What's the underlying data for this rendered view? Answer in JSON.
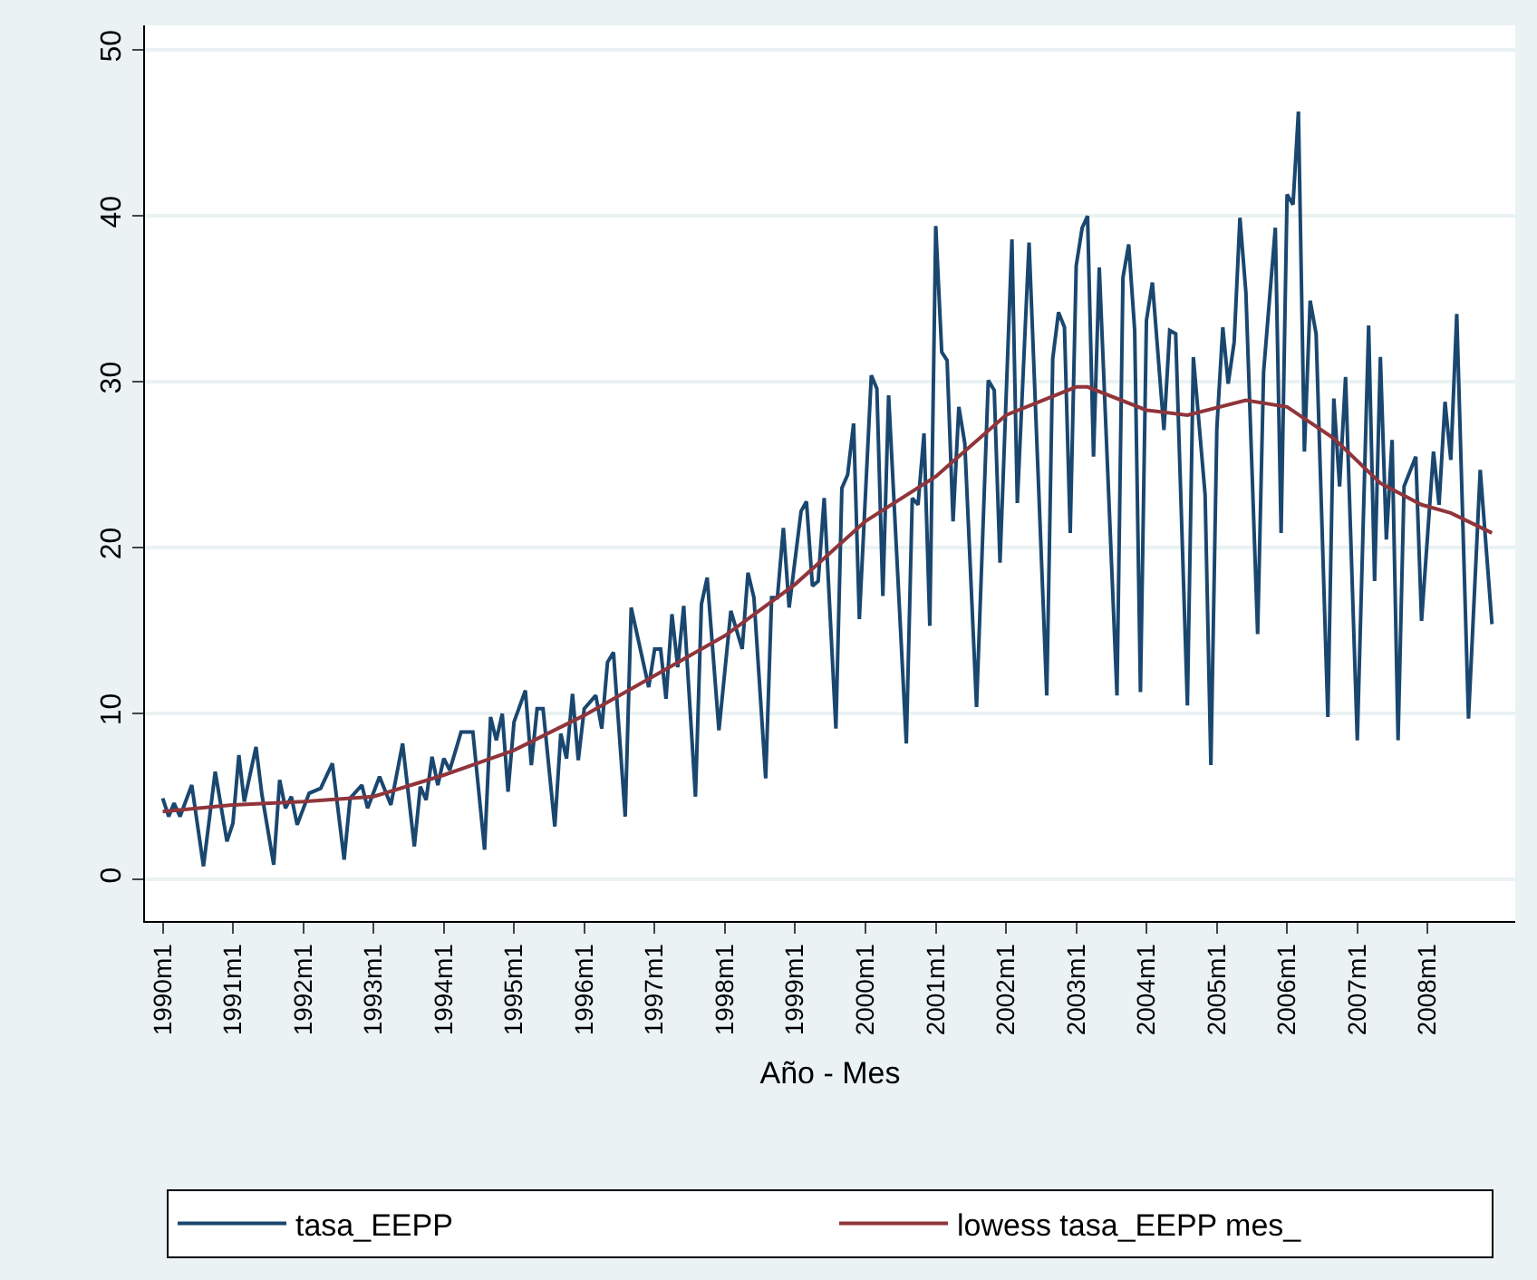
{
  "chart_data": {
    "type": "line",
    "xlabel": "Año - Mes",
    "xlim": [
      "1989-10",
      "2009-04"
    ],
    "xticks": [
      {
        "value": "1990-01",
        "label": "1990m1"
      },
      {
        "value": "1991-01",
        "label": "1991m1"
      },
      {
        "value": "1992-01",
        "label": "1992m1"
      },
      {
        "value": "1993-01",
        "label": "1993m1"
      },
      {
        "value": "1994-01",
        "label": "1994m1"
      },
      {
        "value": "1995-01",
        "label": "1995m1"
      },
      {
        "value": "1996-01",
        "label": "1996m1"
      },
      {
        "value": "1997-01",
        "label": "1997m1"
      },
      {
        "value": "1998-01",
        "label": "1998m1"
      },
      {
        "value": "1999-01",
        "label": "1999m1"
      },
      {
        "value": "2000-01",
        "label": "2000m1"
      },
      {
        "value": "2001-01",
        "label": "2001m1"
      },
      {
        "value": "2002-01",
        "label": "2002m1"
      },
      {
        "value": "2003-01",
        "label": "2003m1"
      },
      {
        "value": "2004-01",
        "label": "2004m1"
      },
      {
        "value": "2005-01",
        "label": "2005m1"
      },
      {
        "value": "2006-01",
        "label": "2006m1"
      },
      {
        "value": "2007-01",
        "label": "2007m1"
      },
      {
        "value": "2008-01",
        "label": "2008m1"
      }
    ],
    "ylim": [
      -2.5,
      51.5
    ],
    "yticks": [
      0,
      10,
      20,
      30,
      40,
      50
    ],
    "grid": "y",
    "legend": "bottom",
    "marker": "none",
    "line_style": "solid",
    "series": [
      {
        "name": "tasa_EEPP",
        "color": "#1a476f",
        "x": [
          "1990-01",
          "1990-02",
          "1990-03",
          "1990-04",
          "1990-06",
          "1990-08",
          "1990-10",
          "1990-12",
          "1991-01",
          "1991-02",
          "1991-03",
          "1991-05",
          "1991-06",
          "1991-08",
          "1991-09",
          "1991-10",
          "1991-11",
          "1991-12",
          "1992-02",
          "1992-04",
          "1992-06",
          "1992-08",
          "1992-09",
          "1992-11",
          "1992-12",
          "1993-02",
          "1993-04",
          "1993-06",
          "1993-08",
          "1993-09",
          "1993-10",
          "1993-11",
          "1993-12",
          "1994-01",
          "1994-02",
          "1994-04",
          "1994-06",
          "1994-08",
          "1994-09",
          "1994-10",
          "1994-11",
          "1994-12",
          "1995-01",
          "1995-03",
          "1995-04",
          "1995-05",
          "1995-06",
          "1995-08",
          "1995-09",
          "1995-10",
          "1995-11",
          "1995-12",
          "1996-01",
          "1996-03",
          "1996-04",
          "1996-05",
          "1996-06",
          "1996-08",
          "1996-09",
          "1996-12",
          "1997-01",
          "1997-02",
          "1997-03",
          "1997-04",
          "1997-05",
          "1997-06",
          "1997-08",
          "1997-09",
          "1997-10",
          "1997-12",
          "1998-02",
          "1998-04",
          "1998-05",
          "1998-06",
          "1998-08",
          "1998-09",
          "1998-10",
          "1998-11",
          "1998-12",
          "1999-02",
          "1999-03",
          "1999-04",
          "1999-05",
          "1999-06",
          "1999-08",
          "1999-09",
          "1999-10",
          "1999-11",
          "1999-12",
          "2000-02",
          "2000-03",
          "2000-04",
          "2000-05",
          "2000-08",
          "2000-09",
          "2000-10",
          "2000-11",
          "2000-12",
          "2001-01",
          "2001-02",
          "2001-03",
          "2001-04",
          "2001-05",
          "2001-06",
          "2001-08",
          "2001-10",
          "2001-11",
          "2001-12",
          "2002-02",
          "2002-03",
          "2002-05",
          "2002-08",
          "2002-09",
          "2002-10",
          "2002-11",
          "2002-12",
          "2003-01",
          "2003-02",
          "2003-03",
          "2003-04",
          "2003-05",
          "2003-08",
          "2003-09",
          "2003-10",
          "2003-11",
          "2003-12",
          "2004-01",
          "2004-02",
          "2004-04",
          "2004-05",
          "2004-06",
          "2004-08",
          "2004-09",
          "2004-11",
          "2004-12",
          "2005-01",
          "2005-02",
          "2005-03",
          "2005-04",
          "2005-05",
          "2005-06",
          "2005-08",
          "2005-09",
          "2005-11",
          "2005-12",
          "2006-01",
          "2006-02",
          "2006-03",
          "2006-04",
          "2006-05",
          "2006-06",
          "2006-08",
          "2006-09",
          "2006-10",
          "2006-11",
          "2007-01",
          "2007-03",
          "2007-04",
          "2007-05",
          "2007-06",
          "2007-07",
          "2007-08",
          "2007-09",
          "2007-11",
          "2007-12",
          "2008-02",
          "2008-03",
          "2008-04",
          "2008-05",
          "2008-06",
          "2008-08",
          "2008-10",
          "2008-12"
        ],
        "values": [
          4.9,
          3.8,
          4.6,
          3.8,
          5.7,
          0.8,
          6.5,
          2.3,
          3.4,
          7.5,
          4.7,
          8.0,
          5.1,
          0.9,
          6.0,
          4.3,
          5.0,
          3.3,
          5.2,
          5.5,
          7.0,
          1.2,
          4.9,
          5.7,
          4.3,
          6.2,
          4.5,
          8.2,
          2.0,
          5.6,
          4.8,
          7.4,
          5.7,
          7.3,
          6.6,
          8.9,
          8.9,
          1.8,
          9.8,
          8.4,
          10.0,
          5.3,
          9.5,
          11.4,
          6.9,
          10.3,
          10.3,
          3.2,
          8.8,
          7.3,
          11.2,
          7.2,
          10.3,
          11.1,
          9.1,
          13.1,
          13.7,
          3.8,
          16.4,
          11.6,
          13.9,
          13.9,
          10.9,
          16.0,
          12.8,
          16.5,
          5.0,
          16.6,
          18.2,
          9.0,
          16.2,
          13.9,
          18.5,
          17.0,
          6.1,
          17.0,
          17.0,
          21.2,
          16.4,
          22.2,
          22.8,
          17.7,
          18.0,
          23.0,
          9.1,
          23.6,
          24.4,
          27.5,
          15.7,
          30.4,
          29.6,
          17.1,
          29.2,
          8.2,
          23.0,
          22.6,
          26.9,
          15.3,
          39.4,
          31.8,
          31.3,
          21.6,
          28.5,
          26.3,
          10.4,
          30.1,
          29.5,
          19.1,
          38.6,
          22.7,
          38.4,
          11.1,
          31.4,
          34.2,
          33.3,
          20.9,
          37.0,
          39.3,
          40.0,
          25.5,
          36.9,
          11.1,
          36.3,
          38.3,
          33.1,
          11.3,
          33.7,
          36.0,
          27.1,
          33.1,
          32.9,
          10.5,
          31.5,
          23.2,
          6.9,
          27.2,
          33.3,
          29.9,
          32.4,
          39.9,
          35.4,
          14.8,
          30.6,
          39.3,
          20.9,
          41.3,
          40.7,
          46.3,
          25.8,
          34.9,
          32.9,
          9.8,
          29.0,
          23.7,
          30.3,
          8.4,
          33.4,
          18.0,
          31.5,
          20.5,
          26.5,
          8.4,
          23.7,
          25.5,
          15.6,
          25.8,
          22.6,
          28.8,
          25.3,
          34.1,
          9.7,
          24.7,
          15.4
        ]
      },
      {
        "name": "lowess tasa_EEPP mes_",
        "color": "#90353b",
        "x": [
          "1990-01",
          "1991-01",
          "1992-01",
          "1993-01",
          "1994-01",
          "1995-01",
          "1996-01",
          "1997-01",
          "1998-01",
          "1999-01",
          "2000-01",
          "2001-01",
          "2002-01",
          "2003-01",
          "2003-03",
          "2004-01",
          "2004-08",
          "2005-06",
          "2006-01",
          "2006-09",
          "2007-05",
          "2007-12",
          "2008-05",
          "2008-12"
        ],
        "values": [
          4.1,
          4.5,
          4.7,
          5.0,
          6.3,
          7.8,
          9.9,
          12.3,
          14.7,
          17.8,
          21.6,
          24.3,
          28.0,
          29.7,
          29.7,
          28.3,
          28.0,
          28.9,
          28.5,
          26.6,
          23.9,
          22.6,
          22.1,
          20.9
        ]
      }
    ]
  }
}
